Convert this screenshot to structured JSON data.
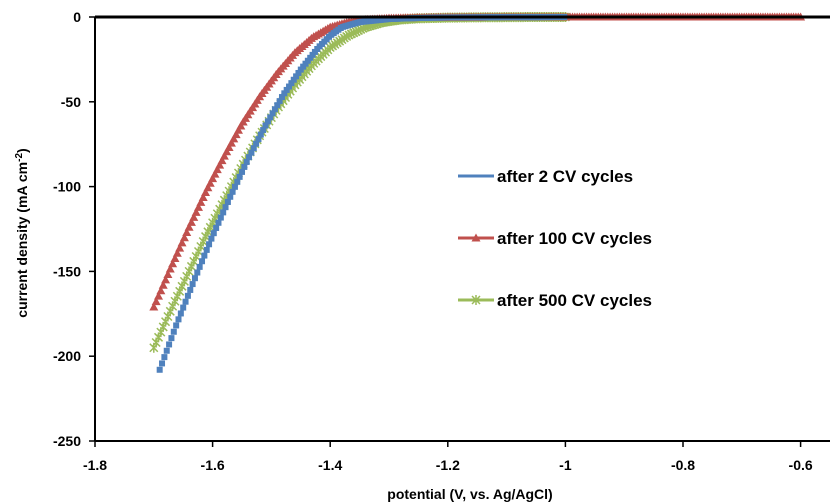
{
  "chart_data": {
    "type": "scatter",
    "title": "",
    "xlabel": "potential (V, vs. Ag/AgCl)",
    "ylabel_main": "current density (mA cm",
    "ylabel_sup": "-2",
    "ylabel_end": ")",
    "xlim": [
      -1.8,
      -0.55
    ],
    "ylim": [
      -250,
      0
    ],
    "xticks": [
      -1.8,
      -1.6,
      -1.4,
      -1.2,
      -1,
      -0.8,
      -0.6
    ],
    "xtick_labels": [
      "-1.8",
      "-1.6",
      "-1.4",
      "-1.2",
      "-1",
      "-0.8",
      "-0.6"
    ],
    "yticks": [
      0,
      -50,
      -100,
      -150,
      -200,
      -250
    ],
    "ytick_labels": [
      "0",
      "-50",
      "-100",
      "-150",
      "-200",
      "-250"
    ],
    "grid": false,
    "legend_position": "center-right",
    "series": [
      {
        "name": "after 2 CV cycles",
        "color": "#4f81bd",
        "marker": "square",
        "x": [
          -1.69,
          -1.66,
          -1.63,
          -1.6,
          -1.57,
          -1.54,
          -1.51,
          -1.48,
          -1.45,
          -1.42,
          -1.4,
          -1.38,
          -1.35,
          -1.3,
          -1.25,
          -1.2,
          -1.15,
          -1.1,
          -1.05,
          -1.0
        ],
        "y": [
          -208,
          -180,
          -154,
          -129,
          -106,
          -84,
          -64,
          -46,
          -31,
          -18,
          -11,
          -6,
          -3,
          -1.2,
          -0.6,
          -0.3,
          -0.2,
          -0.1,
          -0.1,
          0
        ]
      },
      {
        "name": "after 100 CV cycles",
        "color": "#c0504d",
        "marker": "triangle",
        "x": [
          -1.7,
          -1.67,
          -1.64,
          -1.61,
          -1.58,
          -1.55,
          -1.52,
          -1.49,
          -1.46,
          -1.43,
          -1.4,
          -1.37,
          -1.34,
          -1.3,
          -1.25,
          -1.2,
          -1.1,
          -1.0,
          -0.9,
          -0.8,
          -0.7,
          -0.6
        ],
        "y": [
          -171,
          -147,
          -124,
          -102,
          -82,
          -63,
          -47,
          -33,
          -21,
          -12,
          -6,
          -3,
          -1.5,
          -0.7,
          -0.3,
          -0.1,
          0,
          0,
          0,
          0,
          0,
          0
        ]
      },
      {
        "name": "after 500 CV cycles",
        "color": "#9bbb59",
        "marker": "x",
        "x": [
          -1.7,
          -1.67,
          -1.64,
          -1.61,
          -1.58,
          -1.55,
          -1.52,
          -1.49,
          -1.46,
          -1.43,
          -1.4,
          -1.37,
          -1.34,
          -1.31,
          -1.28,
          -1.25,
          -1.2,
          -1.15,
          -1.1,
          -1.05,
          -1.0
        ],
        "y": [
          -195,
          -172,
          -150,
          -128,
          -108,
          -88,
          -70,
          -54,
          -40,
          -28,
          -18,
          -11,
          -6,
          -3,
          -1.5,
          -0.8,
          -0.4,
          -0.2,
          -0.1,
          0,
          0
        ]
      }
    ]
  }
}
